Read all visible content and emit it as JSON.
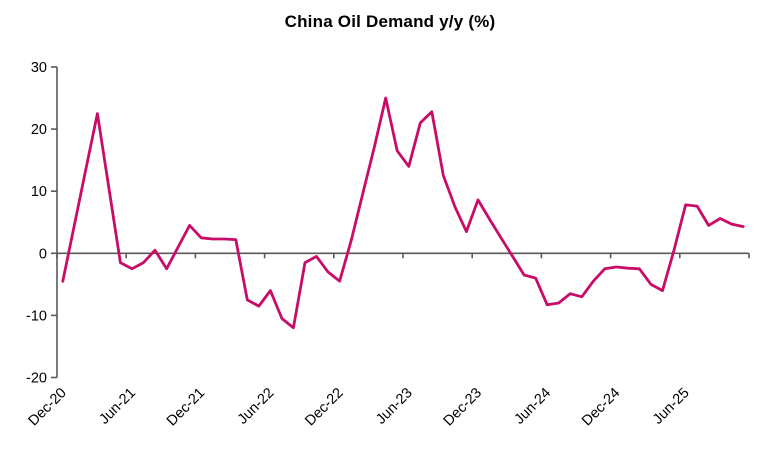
{
  "chart_data": {
    "type": "line",
    "title": "China Oil Demand y/y (%)",
    "series": [
      {
        "name": "China oil demand y/y %",
        "values": [
          -4.5,
          4.5,
          13.5,
          22.5,
          10.5,
          -1.5,
          -2.5,
          -1.5,
          0.5,
          -2.5,
          1.0,
          4.5,
          2.5,
          2.3,
          2.3,
          2.2,
          -7.5,
          -8.5,
          -6.0,
          -10.5,
          -12.0,
          -1.5,
          -0.5,
          -3.0,
          -4.5,
          2.0,
          9.5,
          17.0,
          25.0,
          16.5,
          14.0,
          21.0,
          22.8,
          12.5,
          7.5,
          3.5,
          8.6,
          5.5,
          2.5,
          -0.5,
          -3.5,
          -4.0,
          -8.3,
          -8.0,
          -6.5,
          -7.0,
          -4.5,
          -2.5,
          -2.2,
          -2.4,
          -2.5,
          -5.0,
          -6.0,
          0.5,
          7.8,
          7.6,
          4.5,
          5.6,
          4.7,
          4.3
        ]
      }
    ],
    "x": [
      "Dec-20",
      "Jan-21",
      "Feb-21",
      "Mar-21",
      "Apr-21",
      "May-21",
      "Jun-21",
      "Jul-21",
      "Aug-21",
      "Sep-21",
      "Oct-21",
      "Nov-21",
      "Dec-21",
      "Jan-22",
      "Feb-22",
      "Mar-22",
      "Apr-22",
      "May-22",
      "Jun-22",
      "Jul-22",
      "Aug-22",
      "Sep-22",
      "Oct-22",
      "Nov-22",
      "Dec-22",
      "Jan-23",
      "Feb-23",
      "Mar-23",
      "Apr-23",
      "May-23",
      "Jun-23",
      "Jul-23",
      "Aug-23",
      "Sep-23",
      "Oct-23",
      "Nov-23",
      "Dec-23",
      "Jan-24",
      "Feb-24",
      "Mar-24",
      "Apr-24",
      "May-24",
      "Jun-24",
      "Jul-24",
      "Aug-24",
      "Sep-24",
      "Oct-24",
      "Nov-24",
      "Dec-24",
      "Jan-25",
      "Feb-25",
      "Mar-25",
      "Apr-25",
      "May-25",
      "Jun-25",
      "Jul-25",
      "Aug-25",
      "Sep-25",
      "Oct-25",
      "Nov-25"
    ],
    "x_tick_labels": [
      "Dec-20",
      "Jun-21",
      "Dec-21",
      "Jun-22",
      "Dec-22",
      "Jun-23",
      "Dec-23",
      "Jun-24",
      "Dec-24",
      "Jun-25"
    ],
    "x_label_interval_months": 6,
    "yticks": [
      30,
      20,
      10,
      0,
      -10,
      -20
    ],
    "ylim": [
      -20,
      30
    ],
    "xlabel": "",
    "ylabel": "",
    "legend": "none",
    "grid": "zero-line-only",
    "line_color": "#C90C67",
    "axis_color": "#595959",
    "tick_label_color": "#000000"
  }
}
